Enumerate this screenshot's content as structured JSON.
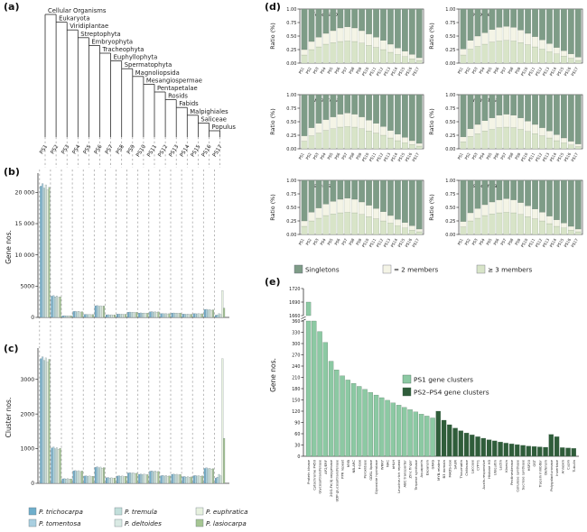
{
  "panels": {
    "a": "(a)",
    "b": "(b)",
    "c": "(c)",
    "d": "(d)",
    "e": "(e)"
  },
  "taxonomy": [
    "Cellular Organisms",
    "Eukaryota",
    "Viridiplantae",
    "Streptophyta",
    "Embryophyta",
    "Tracheophyta",
    "Euphyllophyta",
    "Spermatophyta",
    "Magnoliopsida",
    "Mesangiospermae",
    "Pentapetalae",
    "Rosids",
    "Fabids",
    "Malpighiales",
    "Saliceae",
    "Populus"
  ],
  "ps_labels": [
    "PS1",
    "PS2",
    "PS3",
    "PS4",
    "PS5",
    "PS6",
    "PS7",
    "PS8",
    "PS9",
    "PS10",
    "PS11",
    "PS12",
    "PS13",
    "PS14",
    "PS15",
    "PS16",
    "PS17"
  ],
  "species": [
    {
      "name": "P. trichocarpa",
      "color": "#6FAECB"
    },
    {
      "name": "P. tomentosa",
      "color": "#A9CFE0"
    },
    {
      "name": "P. tremula",
      "color": "#C2DFDB"
    },
    {
      "name": "P. deltoides",
      "color": "#DAEAE4"
    },
    {
      "name": "P. euphratica",
      "color": "#E7F1DF"
    },
    {
      "name": "P. lasiocarpa",
      "color": "#A6C693"
    }
  ],
  "species_legend_order": [
    0,
    2,
    4,
    1,
    3,
    5
  ],
  "chart_data": {
    "panel_b": {
      "type": "bar",
      "ylabel": "Gene nos.",
      "ylim": [
        0,
        22500
      ],
      "yticks": [
        0,
        5000,
        10000,
        15000,
        20000
      ],
      "ytick_labels": [
        "0",
        "5000",
        "10 000",
        "15 000",
        "20 000"
      ],
      "categories": [
        "PS1",
        "PS2",
        "PS3",
        "PS4",
        "PS5",
        "PS6",
        "PS7",
        "PS8",
        "PS9",
        "PS10",
        "PS11",
        "PS12",
        "PS13",
        "PS14",
        "PS15",
        "PS16",
        "PS17"
      ],
      "series_order": [
        "P. trichocarpa",
        "P. tomentosa",
        "P. tremula",
        "P. deltoides",
        "P. euphratica",
        "P. lasiocarpa"
      ],
      "values_by_ps": [
        [
          21000,
          21400,
          20700,
          21200,
          20400,
          20800
        ],
        [
          3400,
          3500,
          3300,
          3450,
          3200,
          3300
        ],
        [
          260,
          280,
          250,
          270,
          240,
          250
        ],
        [
          950,
          1000,
          900,
          980,
          870,
          920
        ],
        [
          480,
          500,
          460,
          490,
          440,
          470
        ],
        [
          1850,
          1900,
          1800,
          1870,
          1750,
          1820
        ],
        [
          420,
          440,
          400,
          430,
          390,
          410
        ],
        [
          520,
          540,
          500,
          530,
          480,
          510
        ],
        [
          830,
          860,
          800,
          840,
          780,
          820
        ],
        [
          700,
          730,
          680,
          710,
          660,
          690
        ],
        [
          900,
          930,
          870,
          910,
          850,
          890
        ],
        [
          610,
          630,
          590,
          620,
          570,
          600
        ],
        [
          700,
          720,
          680,
          700,
          660,
          690
        ],
        [
          520,
          540,
          500,
          530,
          490,
          510
        ],
        [
          600,
          620,
          580,
          610,
          570,
          590
        ],
        [
          1250,
          1300,
          1200,
          1280,
          1150,
          1220
        ],
        [
          350,
          400,
          600,
          500,
          4300,
          1500
        ]
      ]
    },
    "panel_c": {
      "type": "bar",
      "ylabel": "Cluster nos.",
      "ylim": [
        0,
        3800
      ],
      "yticks": [
        0,
        1000,
        2000,
        3000
      ],
      "ytick_labels": [
        "0",
        "1000",
        "2000",
        "3000"
      ],
      "categories": [
        "PS1",
        "PS2",
        "PS3",
        "PS4",
        "PS5",
        "PS6",
        "PS7",
        "PS8",
        "PS9",
        "PS10",
        "PS11",
        "PS12",
        "PS13",
        "PS14",
        "PS15",
        "PS16",
        "PS17"
      ],
      "series_order": [
        "P. trichocarpa",
        "P. tomentosa",
        "P. tremula",
        "P. deltoides",
        "P. euphratica",
        "P. lasiocarpa"
      ],
      "values_by_ps": [
        [
          3600,
          3650,
          3550,
          3620,
          3500,
          3580
        ],
        [
          1020,
          1050,
          1000,
          1030,
          980,
          1010
        ],
        [
          130,
          140,
          125,
          135,
          120,
          128
        ],
        [
          360,
          370,
          350,
          365,
          340,
          355
        ],
        [
          210,
          220,
          200,
          215,
          195,
          205
        ],
        [
          460,
          480,
          450,
          470,
          440,
          455
        ],
        [
          160,
          170,
          150,
          165,
          145,
          155
        ],
        [
          210,
          220,
          200,
          215,
          195,
          205
        ],
        [
          300,
          310,
          290,
          305,
          285,
          295
        ],
        [
          260,
          270,
          250,
          265,
          245,
          255
        ],
        [
          350,
          360,
          340,
          355,
          330,
          345
        ],
        [
          220,
          230,
          210,
          225,
          205,
          215
        ],
        [
          260,
          270,
          250,
          262,
          245,
          255
        ],
        [
          190,
          200,
          180,
          195,
          175,
          185
        ],
        [
          220,
          230,
          210,
          222,
          205,
          215
        ],
        [
          430,
          450,
          420,
          440,
          410,
          425
        ],
        [
          150,
          180,
          260,
          220,
          3600,
          1300
        ]
      ]
    },
    "panel_d": {
      "type": "stacked-bar",
      "ylabel": "Ratio (%)",
      "ytick_labels": [
        "1.00",
        "0.75",
        "0.50",
        "0.25",
        "0.00"
      ],
      "categories": [
        "PS1",
        "PS2",
        "PS3",
        "PS4",
        "PS5",
        "PS6",
        "PS7",
        "PS8",
        "PS9",
        "PS10",
        "PS11",
        "PS12",
        "PS13",
        "PS14",
        "PS15",
        "PS16",
        "PS17"
      ],
      "legend": [
        {
          "label": "Singletons",
          "color": "#7E9C87"
        },
        {
          "label": "= 2 members",
          "color": "#F4F4E6"
        },
        {
          "label": "≥ 3 members",
          "color": "#D8E4C8"
        }
      ],
      "subpanels": [
        {
          "title": "P. trichocarpa",
          "singletons": [
            0.75,
            0.6,
            0.52,
            0.45,
            0.4,
            0.35,
            0.33,
            0.35,
            0.4,
            0.46,
            0.52,
            0.58,
            0.65,
            0.72,
            0.78,
            0.84,
            0.9
          ],
          "two_members": [
            0.1,
            0.15,
            0.18,
            0.2,
            0.22,
            0.25,
            0.26,
            0.25,
            0.23,
            0.21,
            0.19,
            0.17,
            0.15,
            0.12,
            0.1,
            0.08,
            0.05
          ]
        },
        {
          "title": "P. deltoides",
          "singletons": [
            0.74,
            0.58,
            0.5,
            0.44,
            0.38,
            0.34,
            0.32,
            0.34,
            0.39,
            0.45,
            0.51,
            0.57,
            0.64,
            0.71,
            0.77,
            0.83,
            0.89
          ],
          "two_members": [
            0.11,
            0.16,
            0.19,
            0.21,
            0.23,
            0.25,
            0.26,
            0.25,
            0.23,
            0.21,
            0.19,
            0.17,
            0.15,
            0.12,
            0.1,
            0.08,
            0.06
          ]
        },
        {
          "title": "P. tomentosa",
          "singletons": [
            0.76,
            0.61,
            0.53,
            0.46,
            0.41,
            0.36,
            0.34,
            0.36,
            0.41,
            0.47,
            0.53,
            0.59,
            0.66,
            0.73,
            0.79,
            0.85,
            0.9
          ],
          "two_members": [
            0.1,
            0.15,
            0.18,
            0.2,
            0.22,
            0.24,
            0.25,
            0.24,
            0.22,
            0.2,
            0.18,
            0.16,
            0.14,
            0.12,
            0.1,
            0.07,
            0.05
          ]
        },
        {
          "title": "P. euphratica",
          "singletons": [
            0.78,
            0.63,
            0.55,
            0.48,
            0.43,
            0.38,
            0.36,
            0.38,
            0.43,
            0.49,
            0.55,
            0.61,
            0.67,
            0.74,
            0.8,
            0.86,
            0.91
          ],
          "two_members": [
            0.09,
            0.14,
            0.17,
            0.19,
            0.21,
            0.23,
            0.24,
            0.23,
            0.21,
            0.19,
            0.17,
            0.15,
            0.13,
            0.11,
            0.09,
            0.07,
            0.05
          ]
        },
        {
          "title": "P. tremula",
          "singletons": [
            0.75,
            0.59,
            0.51,
            0.44,
            0.39,
            0.35,
            0.33,
            0.35,
            0.4,
            0.46,
            0.52,
            0.58,
            0.65,
            0.72,
            0.78,
            0.84,
            0.9
          ],
          "two_members": [
            0.1,
            0.16,
            0.19,
            0.21,
            0.23,
            0.25,
            0.26,
            0.25,
            0.23,
            0.21,
            0.19,
            0.17,
            0.14,
            0.12,
            0.1,
            0.08,
            0.05
          ]
        },
        {
          "title": "P. lasiocarpa",
          "singletons": [
            0.76,
            0.6,
            0.52,
            0.45,
            0.4,
            0.36,
            0.34,
            0.36,
            0.41,
            0.47,
            0.53,
            0.59,
            0.66,
            0.73,
            0.79,
            0.85,
            0.9
          ],
          "two_members": [
            0.1,
            0.15,
            0.18,
            0.2,
            0.22,
            0.24,
            0.25,
            0.24,
            0.22,
            0.2,
            0.18,
            0.16,
            0.14,
            0.12,
            0.09,
            0.07,
            0.05
          ]
        }
      ]
    },
    "panel_e": {
      "type": "bar",
      "ylabel": "Gene nos.",
      "broken_axis": {
        "top_ticks": [
          1720,
          1690,
          1660
        ],
        "bottom_ticks": [
          360,
          330,
          300,
          270,
          240,
          210,
          180,
          150,
          120,
          90,
          60,
          30,
          0
        ]
      },
      "legend": [
        {
          "label": "PS1 gene clusters",
          "color": "#8CC9A3"
        },
        {
          "label": "PS2–PS4 gene clusters",
          "color": "#2F5D3A"
        }
      ],
      "ps1_count": 23,
      "categories": [
        "Protein kinase",
        "Cytochrome P450",
        "Glycosyltransferase",
        "AP2/ERF",
        "2OG-Fe(II) oxygenase",
        "UDP-glucosyltransferase",
        "PPR repeat",
        "MYB",
        "NB-ARC",
        "F-box",
        "Peroxidase",
        "GDSL lipase",
        "Glycoside hydrolase",
        "WRKY",
        "NAC",
        "bHLH",
        "Leucine-rich repeat",
        "ABC transporter",
        "Zinc finger",
        "Terpene synthase",
        "Aquaporin",
        "Expansin",
        "GRAS",
        "MYB-related",
        "B3 domain",
        "MADS-box",
        "SAUR",
        "Thaumatin",
        "Chitinase",
        "Laccase",
        "CYP71",
        "Auxin-responsive",
        "Histone H3",
        "Ubiquitin",
        "Lectin",
        "Kinesin",
        "Pectinesterase",
        "Cellulose synthase",
        "Sucrose synthase",
        "HSP20",
        "GST",
        "Trypsin inhibitor",
        "Defensin",
        "Polygalacturonase",
        "Invertase",
        "Annexin",
        "Cupin",
        "Tubulin"
      ],
      "values": [
        1690,
        360,
        332,
        303,
        253,
        230,
        214,
        203,
        194,
        186,
        178,
        170,
        163,
        156,
        149,
        142,
        136,
        130,
        124,
        118,
        112,
        107,
        102,
        120,
        96,
        84,
        75,
        68,
        62,
        57,
        52,
        48,
        44,
        41,
        38,
        35,
        33,
        31,
        29,
        27,
        26,
        25,
        24,
        58,
        52,
        23,
        22,
        21
      ]
    }
  }
}
